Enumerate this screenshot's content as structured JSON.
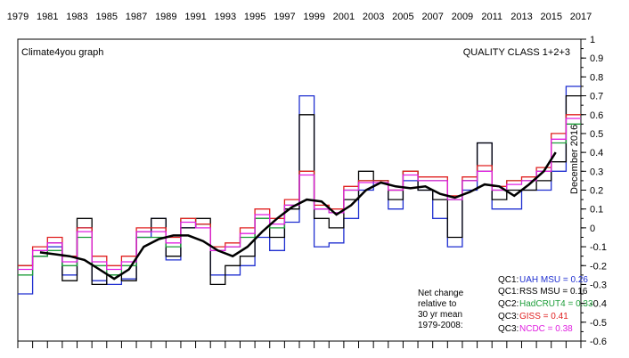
{
  "header": {
    "source_label": "Climate4you graph",
    "title": "QUALITY CLASS 1+2+3",
    "date_note": "December 2016"
  },
  "colors": {
    "uah": "#1f2fd0",
    "rss": "#000000",
    "hadcrut": "#1e9e3a",
    "giss": "#e02020",
    "ncdc": "#e020e0",
    "source_label": "#2a2ad8",
    "running_mean": "#000000"
  },
  "chart_data": {
    "type": "line",
    "title": "QUALITY CLASS 1+2+3",
    "subtitle": "",
    "xlabel": "",
    "ylabel": "",
    "xlim": [
      1979,
      2017
    ],
    "ylim": [
      -0.6,
      1.0
    ],
    "grid": false,
    "x_ticks": [
      "1979",
      "1981",
      "1983",
      "1985",
      "1987",
      "1989",
      "1991",
      "1993",
      "1995",
      "1997",
      "1999",
      "2001",
      "2003",
      "2005",
      "2007",
      "2009",
      "2011",
      "2013",
      "2015",
      "2017"
    ],
    "y_ticks": [
      "1",
      "0.9",
      "0.8",
      "0.7",
      "0.6",
      "0.5",
      "0.4",
      "0.3",
      "0.2",
      "0.1",
      "0",
      "-0.1",
      "-0.2",
      "-0.3",
      "-0.4",
      "-0.5",
      "-0.6"
    ],
    "running_mean": {
      "x": [
        1980.5,
        1981.5,
        1982.5,
        1983.5,
        1984.5,
        1985.5,
        1986.5,
        1987.5,
        1988.5,
        1989.5,
        1990.5,
        1991.5,
        1992.5,
        1993.5,
        1994.5,
        1995.5,
        1996.5,
        1997.5,
        1998.5,
        1999.5,
        2000.5,
        2001.5,
        2002.5,
        2003.5,
        2004.5,
        2005.5,
        2006.5,
        2007.5,
        2008.5,
        2009.5,
        2010.5,
        2011.5,
        2012.5,
        2013.5,
        2014.5,
        2015.3
      ],
      "y": [
        -0.13,
        -0.14,
        -0.15,
        -0.17,
        -0.22,
        -0.27,
        -0.22,
        -0.1,
        -0.06,
        -0.04,
        -0.04,
        -0.07,
        -0.12,
        -0.15,
        -0.1,
        -0.02,
        0.05,
        0.11,
        0.15,
        0.14,
        0.07,
        0.12,
        0.2,
        0.24,
        0.22,
        0.21,
        0.22,
        0.18,
        0.16,
        0.19,
        0.23,
        0.22,
        0.17,
        0.23,
        0.3,
        0.4
      ]
    },
    "series": [
      {
        "name": "UAH MSU",
        "class": "QC1",
        "color_key": "uah",
        "x": [
          1979,
          1980,
          1981,
          1982,
          1983,
          1984,
          1985,
          1986,
          1987,
          1988,
          1989,
          1990,
          1991,
          1992,
          1993,
          1994,
          1995,
          1996,
          1997,
          1998,
          1999,
          2000,
          2001,
          2002,
          2003,
          2004,
          2005,
          2006,
          2007,
          2008,
          2009,
          2010,
          2011,
          2012,
          2013,
          2014,
          2015,
          2016
        ],
        "y": [
          -0.35,
          -0.15,
          -0.1,
          -0.25,
          0.0,
          -0.28,
          -0.3,
          -0.27,
          -0.05,
          0.05,
          -0.17,
          0.0,
          0.02,
          -0.25,
          -0.25,
          -0.2,
          -0.05,
          -0.12,
          0.03,
          0.7,
          -0.1,
          -0.08,
          0.05,
          0.2,
          0.25,
          0.1,
          0.25,
          0.2,
          0.05,
          -0.1,
          0.2,
          0.45,
          0.1,
          0.1,
          0.2,
          0.2,
          0.3,
          0.75
        ]
      },
      {
        "name": "RSS MSU",
        "class": "QC1",
        "color_key": "rss",
        "x": [
          1979,
          1980,
          1981,
          1982,
          1983,
          1984,
          1985,
          1986,
          1987,
          1988,
          1989,
          1990,
          1991,
          1992,
          1993,
          1994,
          1995,
          1996,
          1997,
          1998,
          1999,
          2000,
          2001,
          2002,
          2003,
          2004,
          2005,
          2006,
          2007,
          2008,
          2009,
          2010,
          2011,
          2012,
          2013,
          2014,
          2015,
          2016
        ],
        "y": [
          -0.2,
          -0.15,
          -0.08,
          -0.28,
          0.05,
          -0.3,
          -0.25,
          -0.28,
          -0.02,
          0.05,
          -0.15,
          0.0,
          0.05,
          -0.3,
          -0.2,
          -0.15,
          0.05,
          -0.05,
          0.1,
          0.6,
          0.05,
          0.0,
          0.15,
          0.3,
          0.25,
          0.15,
          0.3,
          0.2,
          0.15,
          -0.05,
          0.25,
          0.45,
          0.15,
          0.2,
          0.2,
          0.25,
          0.35,
          0.7
        ]
      },
      {
        "name": "HadCRUT4",
        "class": "QC2",
        "color_key": "hadcrut",
        "x": [
          1979,
          1980,
          1981,
          1982,
          1983,
          1984,
          1985,
          1986,
          1987,
          1988,
          1989,
          1990,
          1991,
          1992,
          1993,
          1994,
          1995,
          1996,
          1997,
          1998,
          1999,
          2000,
          2001,
          2002,
          2003,
          2004,
          2005,
          2006,
          2007,
          2008,
          2009,
          2010,
          2011,
          2012,
          2013,
          2014,
          2015,
          2016
        ],
        "y": [
          -0.25,
          -0.15,
          -0.12,
          -0.2,
          -0.05,
          -0.2,
          -0.25,
          -0.2,
          -0.05,
          -0.05,
          -0.1,
          0.05,
          0.02,
          -0.12,
          -0.1,
          -0.05,
          0.05,
          0.0,
          0.12,
          0.3,
          0.1,
          0.08,
          0.2,
          0.25,
          0.25,
          0.2,
          0.3,
          0.25,
          0.25,
          0.15,
          0.25,
          0.3,
          0.2,
          0.25,
          0.25,
          0.3,
          0.45,
          0.55
        ]
      },
      {
        "name": "GISS",
        "class": "QC3",
        "color_key": "giss",
        "x": [
          1979,
          1980,
          1981,
          1982,
          1983,
          1984,
          1985,
          1986,
          1987,
          1988,
          1989,
          1990,
          1991,
          1992,
          1993,
          1994,
          1995,
          1996,
          1997,
          1998,
          1999,
          2000,
          2001,
          2002,
          2003,
          2004,
          2005,
          2006,
          2007,
          2008,
          2009,
          2010,
          2011,
          2012,
          2013,
          2014,
          2015,
          2016
        ],
        "y": [
          -0.2,
          -0.1,
          -0.05,
          -0.15,
          0.0,
          -0.15,
          -0.2,
          -0.15,
          0.0,
          0.0,
          -0.05,
          0.05,
          0.02,
          -0.1,
          -0.08,
          0.0,
          0.1,
          0.05,
          0.15,
          0.3,
          0.12,
          0.1,
          0.22,
          0.25,
          0.25,
          0.2,
          0.3,
          0.27,
          0.27,
          0.17,
          0.27,
          0.33,
          0.22,
          0.25,
          0.27,
          0.32,
          0.5,
          0.6
        ]
      },
      {
        "name": "NCDC",
        "class": "QC3",
        "color_key": "ncdc",
        "x": [
          1979,
          1980,
          1981,
          1982,
          1983,
          1984,
          1985,
          1986,
          1987,
          1988,
          1989,
          1990,
          1991,
          1992,
          1993,
          1994,
          1995,
          1996,
          1997,
          1998,
          1999,
          2000,
          2001,
          2002,
          2003,
          2004,
          2005,
          2006,
          2007,
          2008,
          2009,
          2010,
          2011,
          2012,
          2013,
          2014,
          2015,
          2016
        ],
        "y": [
          -0.22,
          -0.12,
          -0.08,
          -0.18,
          -0.02,
          -0.18,
          -0.22,
          -0.18,
          -0.02,
          -0.02,
          -0.08,
          0.03,
          0.0,
          -0.12,
          -0.1,
          -0.03,
          0.07,
          0.02,
          0.12,
          0.28,
          0.1,
          0.08,
          0.2,
          0.24,
          0.24,
          0.2,
          0.28,
          0.25,
          0.25,
          0.15,
          0.25,
          0.3,
          0.2,
          0.23,
          0.25,
          0.3,
          0.47,
          0.58
        ]
      }
    ],
    "legend": {
      "placement": "bottom-right",
      "items": [
        {
          "class_label": "QC1:",
          "text": "UAH MSU = 0.26",
          "color_key": "uah"
        },
        {
          "class_label": "QC1:",
          "text": "RSS MSU = 0.16",
          "color_key": "rss"
        },
        {
          "class_label": "QC2:",
          "text": "HadCRUT4 = 0.33",
          "color_key": "hadcrut"
        },
        {
          "class_label": "QC3:",
          "text": "GISS = 0.41",
          "color_key": "giss"
        },
        {
          "class_label": "QC3:",
          "text": "NCDC = 0.38",
          "color_key": "ncdc"
        }
      ]
    },
    "annotation_lines": [
      "Net change",
      "relative to",
      "30 yr mean",
      "1979-2008:"
    ]
  }
}
